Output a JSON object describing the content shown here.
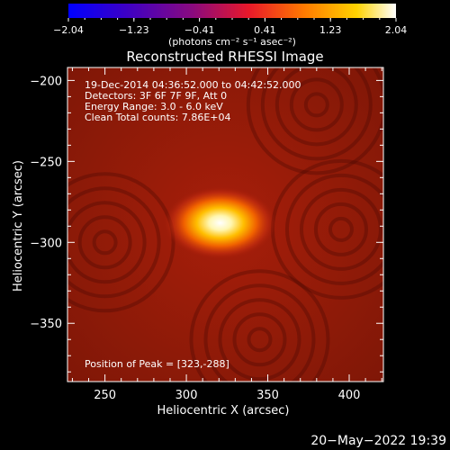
{
  "chart_data": {
    "type": "heatmap",
    "title": "Reconstructed RHESSI Image",
    "xlabel": "Heliocentric X (arcsec)",
    "ylabel": "Heliocentric Y (arcsec)",
    "xlim": [
      227,
      421
    ],
    "ylim": [
      -386,
      -192
    ],
    "xticks": [
      250,
      300,
      350,
      400
    ],
    "yticks": [
      -200,
      -250,
      -300,
      -350
    ],
    "x_tick_labels": [
      "250",
      "300",
      "350",
      "400"
    ],
    "y_tick_labels": [
      "−200",
      "−250",
      "−300",
      "−350"
    ],
    "colorbar": {
      "min": -2.04,
      "max": 2.04,
      "tick_labels": [
        "−2.04",
        "−1.23",
        "−0.41",
        "0.41",
        "1.23",
        "2.04"
      ],
      "unit_label": "(photons cm⁻² s⁻¹ asec⁻²)"
    },
    "annotations": [
      "19-Dec-2014 04:36:52.000 to 04:42:52.000",
      "Detectors: 3F 6F 7F 9F, Att 0",
      "Energy Range: 3.0 - 6.0 keV",
      "Clean     Total counts: 7.86E+04",
      "Position of Peak = [323,-288]"
    ],
    "peak": [
      323,
      -288
    ],
    "background_level": 0.2,
    "source_peak_level": 2.04,
    "timestamp": "20−May−2022 19:39"
  }
}
